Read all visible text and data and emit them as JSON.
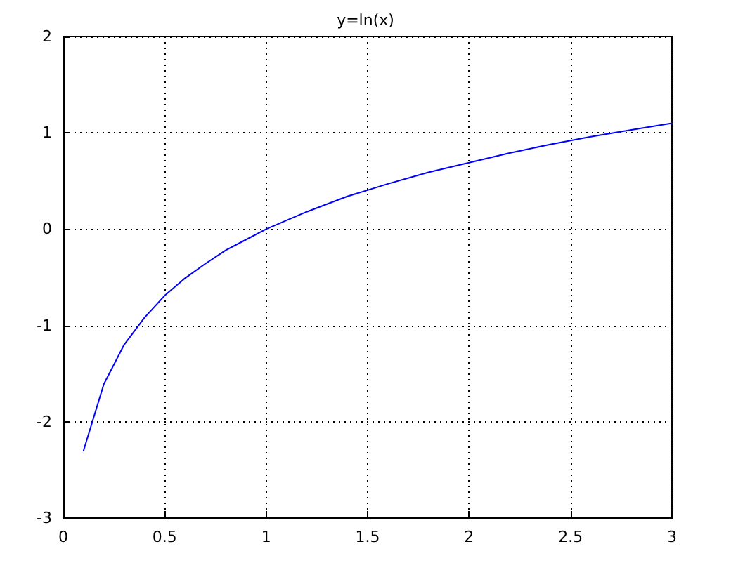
{
  "chart_data": {
    "type": "line",
    "title": "y=ln(x)",
    "x": [
      0.1,
      0.2,
      0.3,
      0.4,
      0.5,
      0.6,
      0.7,
      0.8,
      0.9,
      1,
      1.2,
      1.4,
      1.6,
      1.8,
      2,
      2.2,
      2.4,
      2.6,
      2.8,
      3
    ],
    "series": [
      {
        "color": "#0000ff",
        "values": [
          -2.3,
          -1.61,
          -1.2,
          -0.92,
          -0.69,
          -0.51,
          -0.36,
          -0.22,
          -0.11,
          0,
          0.18,
          0.34,
          0.47,
          0.59,
          0.69,
          0.79,
          0.88,
          0.96,
          1.03,
          1.1
        ]
      }
    ],
    "xlim": [
      0,
      3
    ],
    "xticks": [
      0,
      0.5,
      1,
      1.5,
      2,
      2.5,
      3
    ],
    "ylim": [
      -3,
      2
    ],
    "yticks": [
      -3,
      -2,
      -1,
      0,
      1,
      2
    ],
    "grid": true,
    "line_style": "solid",
    "marker": "none"
  }
}
